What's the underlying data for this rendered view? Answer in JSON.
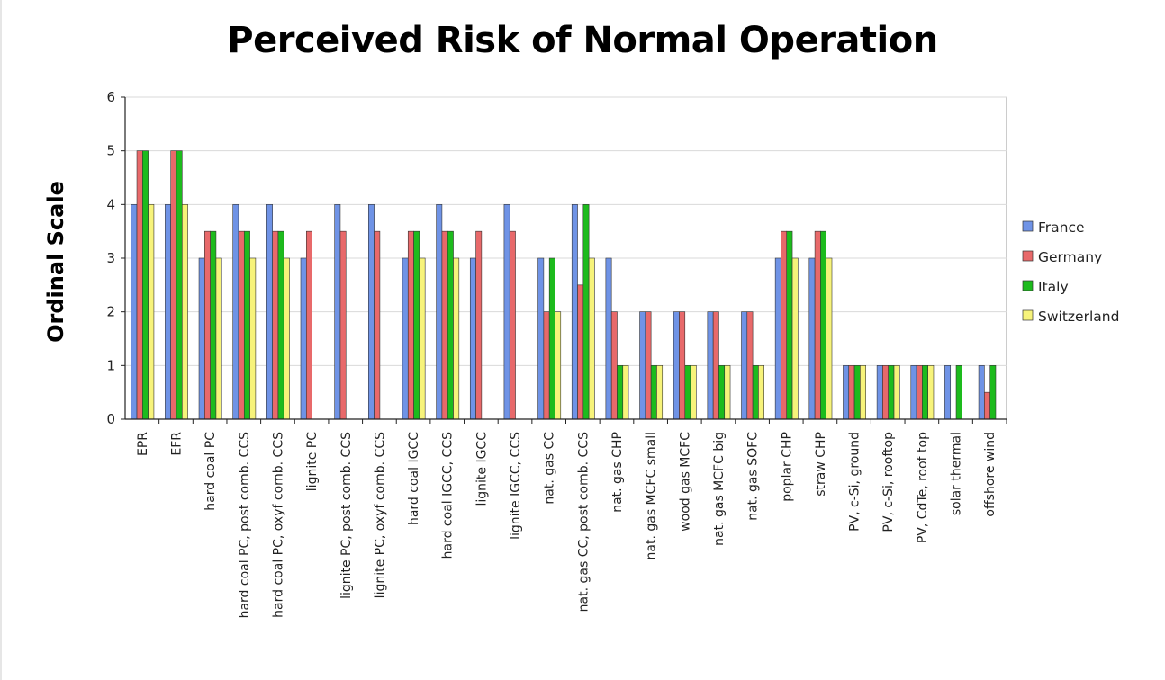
{
  "chart_data": {
    "type": "bar",
    "title": "Perceived Risk of Normal Operation",
    "xlabel": "",
    "ylabel": "Ordinal Scale",
    "ylim": [
      0,
      6
    ],
    "yticks": [
      0,
      1,
      2,
      3,
      4,
      5,
      6
    ],
    "grid": true,
    "legend_position": "right",
    "categories": [
      "EPR",
      "EFR",
      "hard coal PC",
      "hard coal PC, post comb. CCS",
      "hard coal PC, oxyf comb. CCS",
      "lignite PC",
      "lignite PC, post comb. CCS",
      "lignite PC, oxyf comb. CCS",
      "hard coal IGCC",
      "hard coal IGCC, CCS",
      "lignite IGCC",
      "lignite IGCC, CCS",
      "nat. gas CC",
      "nat. gas CC, post comb. CCS",
      "nat. gas CHP",
      "nat. gas MCFC small",
      "wood gas MCFC",
      "nat. gas MCFC big",
      "nat. gas SOFC",
      "poplar CHP",
      "straw CHP",
      "PV, c-Si, ground",
      "PV, c-Si, rooftop",
      "PV, CdTe, roof top",
      "solar thermal",
      "offshore wind"
    ],
    "series": [
      {
        "name": "France",
        "color": "#6f93e6",
        "values": [
          4,
          4,
          3,
          4,
          4,
          3,
          4,
          4,
          3,
          4,
          3,
          4,
          3,
          4,
          3,
          2,
          2,
          2,
          2,
          3,
          3,
          1,
          1,
          1,
          1,
          1
        ]
      },
      {
        "name": "Germany",
        "color": "#e8696a",
        "values": [
          5,
          5,
          3.5,
          3.5,
          3.5,
          3.5,
          3.5,
          3.5,
          3.5,
          3.5,
          3.5,
          3.5,
          2,
          2.5,
          2,
          2,
          2,
          2,
          2,
          3.5,
          3.5,
          1,
          1,
          1,
          0,
          0.5
        ]
      },
      {
        "name": "Italy",
        "color": "#1dbb1d",
        "values": [
          5,
          5,
          3.5,
          3.5,
          3.5,
          0,
          0,
          0,
          3.5,
          3.5,
          0,
          0,
          3,
          4,
          1,
          1,
          1,
          1,
          1,
          3.5,
          3.5,
          1,
          1,
          1,
          1,
          1
        ]
      },
      {
        "name": "Switzerland",
        "color": "#f7f37a",
        "values": [
          4,
          4,
          3,
          3,
          3,
          0,
          0,
          0,
          3,
          3,
          0,
          0,
          2,
          3,
          1,
          1,
          1,
          1,
          1,
          3,
          3,
          1,
          1,
          1,
          0,
          0
        ]
      }
    ]
  }
}
